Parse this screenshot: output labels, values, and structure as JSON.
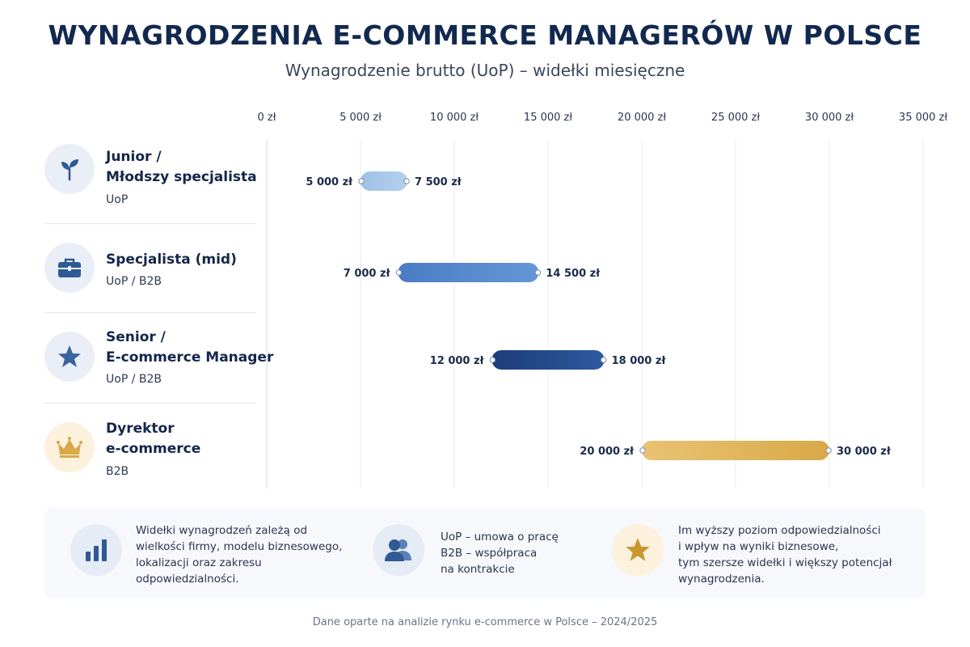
{
  "header": {
    "title": "WYNAGRODZENIA E-COMMERCE MANAGERÓW W POLSCE",
    "subtitle": "Wynagrodzenie brutto (UoP) – widełki miesięczne"
  },
  "levels": [
    {
      "name": "Junior /\nMłodszy specjalista",
      "contract": "UoP",
      "icon": "sprout-icon"
    },
    {
      "name": "Specjalista (mid)",
      "contract": "UoP / B2B",
      "icon": "briefcase-icon"
    },
    {
      "name": "Senior /\nE-commerce Manager",
      "contract": "UoP / B2B",
      "icon": "star-icon"
    },
    {
      "name": "Dyrektor\ne-commerce",
      "contract": "B2B",
      "icon": "crown-icon"
    }
  ],
  "chart_data": {
    "type": "bar",
    "orientation": "horizontal-range",
    "xlim": [
      0,
      35000
    ],
    "ticks": [
      0,
      5000,
      10000,
      15000,
      20000,
      25000,
      30000,
      35000
    ],
    "tick_labels": [
      "0 zł",
      "5 000 zł",
      "10 000 zł",
      "15 000 zł",
      "20 000 zł",
      "25 000 zł",
      "30 000 zł",
      "35 000 zł"
    ],
    "grid": true,
    "categories": [
      "Junior / Młodszy specjalista",
      "Specjalista (mid)",
      "Senior / E-commerce Manager",
      "Dyrektor e-commerce"
    ],
    "ranges": [
      {
        "min": 5000,
        "max": 7500,
        "min_label": "5 000 zł",
        "max_label": "7 500 zł",
        "color_start": "#9dc1e8",
        "color_end": "#b5d0ee"
      },
      {
        "min": 7000,
        "max": 14500,
        "min_label": "7 000 zł",
        "max_label": "14 500 zł",
        "color_start": "#4a7cc4",
        "color_end": "#6597d6"
      },
      {
        "min": 12000,
        "max": 18000,
        "min_label": "12 000 zł",
        "max_label": "18 000 zł",
        "color_start": "#1c3d78",
        "color_end": "#2d5aa0"
      },
      {
        "min": 20000,
        "max": 30000,
        "min_label": "20 000 zł",
        "max_label": "30 000 zł",
        "color_start": "#e9c373",
        "color_end": "#d9a948"
      }
    ]
  },
  "info": [
    {
      "icon": "bar-chart-icon",
      "text": "Widełki wynagrodzeń zależą od\nwielkości firmy, modelu biznesowego,\nlokalizacji oraz zakresu\nodpowiedzialności."
    },
    {
      "icon": "users-icon",
      "text": "UoP – umowa o pracę\nB2B – współpraca\nna kontrakcie"
    },
    {
      "icon": "star-icon",
      "text": "Im wyższy poziom odpowiedzialności\ni wpływ na wyniki biznesowe,\ntym szersze widełki i większy potencjał\nwynagrodzenia."
    }
  ],
  "footer": "Dane oparte na analizie rynku e-commerce w Polsce – 2024/2025",
  "colors": {
    "navy": "#12294f",
    "accent_gold": "#d9a948",
    "icon_blue": "#2f5a93"
  }
}
